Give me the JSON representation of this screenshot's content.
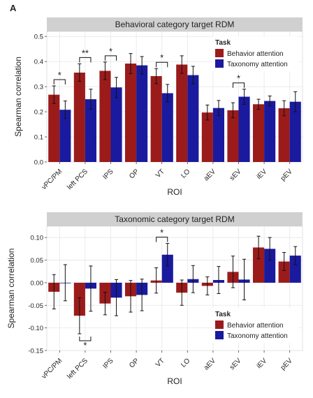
{
  "panel_label": "A",
  "colors": {
    "behavior": "#9b1b1b",
    "taxonomy": "#1a1a9e",
    "strip": "#d0d0d0",
    "panel_bg": "#ffffff",
    "grid": "#e6e6e6"
  },
  "chart_data": [
    {
      "type": "bar",
      "title": "Behavioral category target RDM",
      "xlabel": "ROI",
      "ylabel": "Spearman correlation",
      "ylim": [
        0,
        0.52
      ],
      "yticks": [
        "0.0",
        "0.1",
        "0.2",
        "0.3",
        "0.4",
        "0.5"
      ],
      "categories": [
        "vPC/PM",
        "left PCS",
        "IPS",
        "OP",
        "VT",
        "LO",
        "aEV",
        "sEV",
        "iEV",
        "pEV"
      ],
      "legend": {
        "title": "Task",
        "placement": "top-right"
      },
      "grid": true,
      "series": [
        {
          "name": "Behavior attention",
          "values": [
            0.268,
            0.356,
            0.363,
            0.392,
            0.342,
            0.388,
            0.197,
            0.206,
            0.23,
            0.214
          ],
          "errors": [
            0.035,
            0.035,
            0.035,
            0.04,
            0.03,
            0.035,
            0.03,
            0.03,
            0.02,
            0.03
          ]
        },
        {
          "name": "Taxonomy attention",
          "values": [
            0.208,
            0.25,
            0.297,
            0.385,
            0.274,
            0.346,
            0.215,
            0.26,
            0.243,
            0.24
          ],
          "errors": [
            0.035,
            0.04,
            0.04,
            0.035,
            0.035,
            0.035,
            0.03,
            0.03,
            0.02,
            0.04
          ]
        }
      ],
      "significance": [
        {
          "category": "vPC/PM",
          "label": "*"
        },
        {
          "category": "left PCS",
          "label": "**"
        },
        {
          "category": "IPS",
          "label": "*"
        },
        {
          "category": "VT",
          "label": "*"
        },
        {
          "category": "sEV",
          "label": "*"
        }
      ]
    },
    {
      "type": "bar",
      "title": "Taxonomic category target RDM",
      "xlabel": "ROI",
      "ylabel": "Spearman correlation",
      "ylim": [
        -0.15,
        0.125
      ],
      "yticks": [
        "-0.15",
        "-0.10",
        "-0.05",
        "0.00",
        "0.05",
        "0.10"
      ],
      "categories": [
        "vPC/PM",
        "left PCS",
        "IPS",
        "OP",
        "VT",
        "LO",
        "aEV",
        "sEV",
        "iEV",
        "pEV"
      ],
      "legend": {
        "title": "Task",
        "placement": "bottom-right"
      },
      "grid": true,
      "series": [
        {
          "name": "Behavior attention",
          "values": [
            -0.02,
            -0.073,
            -0.046,
            -0.03,
            0.005,
            -0.022,
            -0.007,
            0.024,
            0.078,
            0.047
          ],
          "errors": [
            0.038,
            0.04,
            0.025,
            0.035,
            0.028,
            0.028,
            0.02,
            0.035,
            0.025,
            0.02
          ]
        },
        {
          "name": "Taxonomy attention",
          "values": [
            0.0,
            -0.013,
            -0.033,
            -0.027,
            0.062,
            0.008,
            0.006,
            0.007,
            0.075,
            0.06
          ],
          "errors": [
            0.04,
            0.05,
            0.04,
            0.035,
            0.025,
            0.03,
            0.03,
            0.045,
            0.025,
            0.02
          ]
        }
      ],
      "significance": [
        {
          "category": "left PCS",
          "label": "*",
          "position": "below"
        },
        {
          "category": "VT",
          "label": "*",
          "position": "above"
        }
      ]
    }
  ]
}
